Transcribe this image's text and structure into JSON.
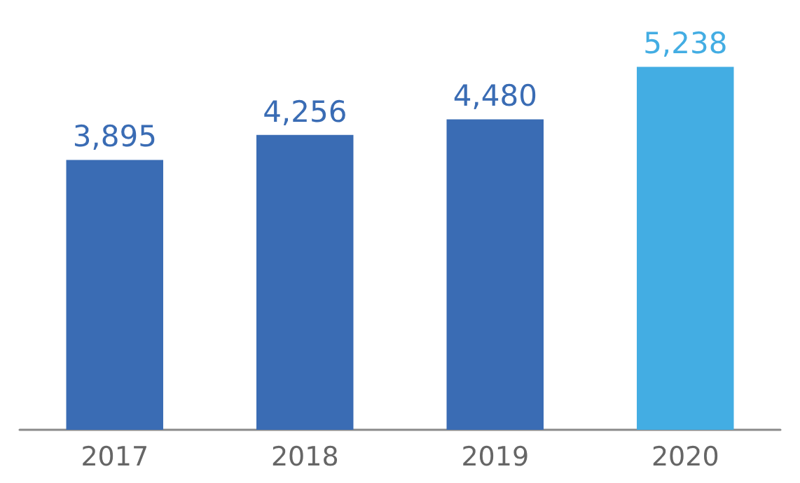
{
  "chart_data": {
    "type": "bar",
    "categories": [
      "2017",
      "2018",
      "2019",
      "2020"
    ],
    "values": [
      3895,
      4256,
      4480,
      5238
    ],
    "colors": [
      "#3a6cb4",
      "#3a6cb4",
      "#3a6cb4",
      "#43ade3"
    ],
    "value_labels": [
      "3,895",
      "4,256",
      "4,480",
      "5,238"
    ]
  }
}
